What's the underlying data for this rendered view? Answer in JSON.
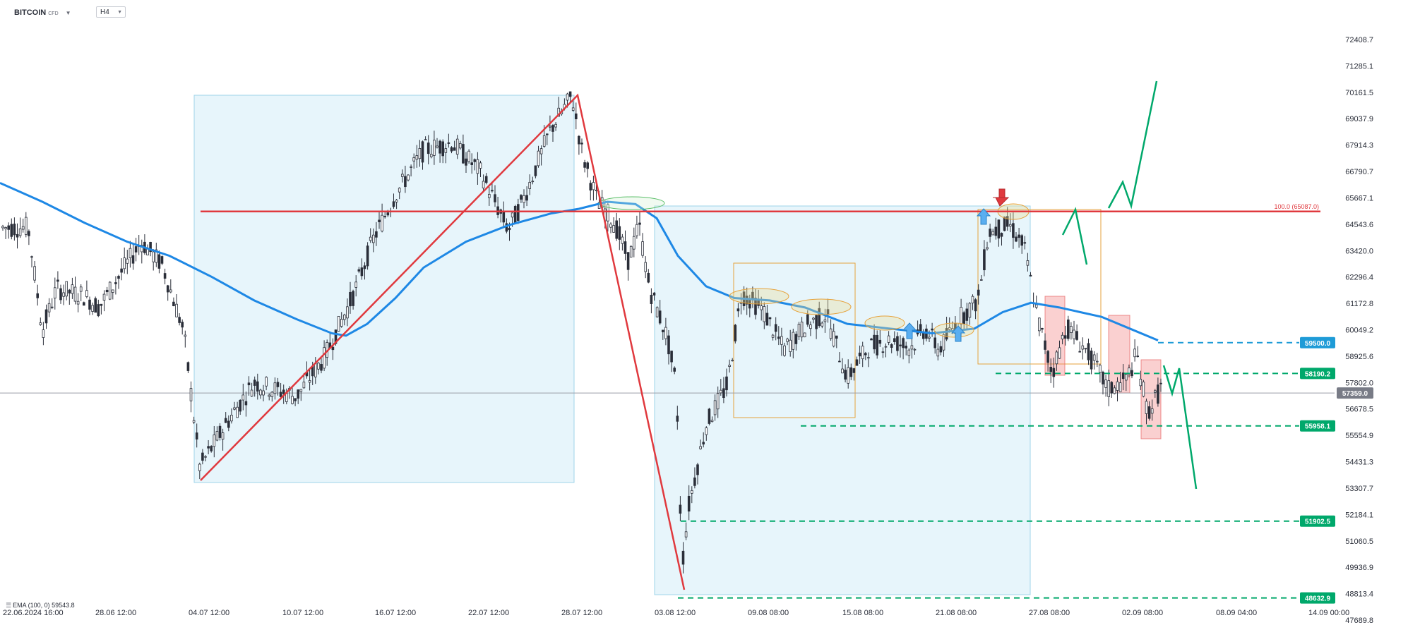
{
  "header": {
    "symbol": "BITCOIN",
    "symbol_type": "CFD",
    "timeframe": "H4"
  },
  "indicator": {
    "label": "EMA (100, 0)",
    "value": "59543.8"
  },
  "colors": {
    "ema": "#1e88e5",
    "resistance": "#e0393e",
    "support_green": "#00a86b",
    "blue_badge": "#1e9bd7",
    "price_badge": "#787b86",
    "zone_fill": "#e7f5fb",
    "zone_stroke": "#9fd4ea",
    "range_box": "#e6a23c",
    "candle": "#2a2e39"
  },
  "chart_data": {
    "type": "candlestick",
    "x_ticks": [
      "22.06.2024  16:00",
      "28.06  12:00",
      "04.07  12:00",
      "10.07  12:00",
      "16.07  12:00",
      "22.07  12:00",
      "28.07  12:00",
      "03.08  12:00",
      "09.08  08:00",
      "15.08  08:00",
      "21.08  08:00",
      "27.08  08:00",
      "02.09  08:00",
      "08.09  04:00",
      "14.09  00:00"
    ],
    "y_ticks": [
      "72408.7",
      "71285.1",
      "70161.5",
      "69037.9",
      "67914.3",
      "66790.7",
      "65667.1",
      "64543.6",
      "63420.0",
      "62296.4",
      "61172.8",
      "60049.2",
      "58925.6",
      "57802.0",
      "56678.5",
      "55554.9",
      "54431.3",
      "53307.7",
      "52184.1",
      "51060.5",
      "49936.9",
      "48813.4",
      "47689.8"
    ],
    "ylim": [
      47689.8,
      72408.7
    ],
    "current_price": "57359.0",
    "fib_label": "100.0 (65087.0)",
    "levels": [
      {
        "price": "59500.0",
        "value": 59500.0,
        "style": "dashed",
        "color": "blue"
      },
      {
        "price": "58190.2",
        "value": 58190.2,
        "style": "dashed",
        "color": "green"
      },
      {
        "price": "55958.1",
        "value": 55958.1,
        "style": "dashed",
        "color": "green"
      },
      {
        "price": "51902.5",
        "value": 51902.5,
        "style": "dashed",
        "color": "green"
      },
      {
        "price": "48632.9",
        "value": 48632.9,
        "style": "dashed",
        "color": "green"
      }
    ],
    "resistance_level": 65087.0,
    "ema_last": 59543.8
  }
}
